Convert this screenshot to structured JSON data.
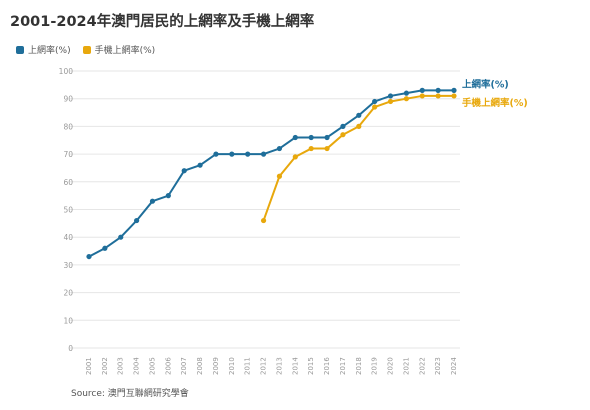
{
  "title": "2001-2024年澳門居民的上網率及手機上網率",
  "source": "Source: 澳門互聯網研究學會",
  "chart_data": {
    "type": "line",
    "x": [
      2001,
      2002,
      2003,
      2004,
      2005,
      2006,
      2007,
      2008,
      2009,
      2010,
      2011,
      2012,
      2013,
      2014,
      2015,
      2016,
      2017,
      2018,
      2019,
      2020,
      2021,
      2022,
      2023,
      2024
    ],
    "ylim": [
      0,
      100
    ],
    "yticks": [
      0,
      10,
      20,
      30,
      40,
      50,
      60,
      70,
      80,
      90,
      100
    ],
    "grid": true,
    "legend_position": "top-left",
    "series": [
      {
        "name": "上網率(%)",
        "color": "#1f6e9a",
        "values": [
          33,
          36,
          40,
          46,
          53,
          55,
          64,
          66,
          70,
          70,
          70,
          70,
          72,
          76,
          76,
          76,
          80,
          84,
          89,
          91,
          92,
          93,
          93,
          93
        ]
      },
      {
        "name": "手機上網率(%)",
        "color": "#e8a80c",
        "values": [
          null,
          null,
          null,
          null,
          null,
          null,
          null,
          null,
          null,
          null,
          null,
          46,
          62,
          69,
          72,
          72,
          77,
          80,
          87,
          89,
          90,
          91,
          91,
          91
        ]
      }
    ]
  }
}
